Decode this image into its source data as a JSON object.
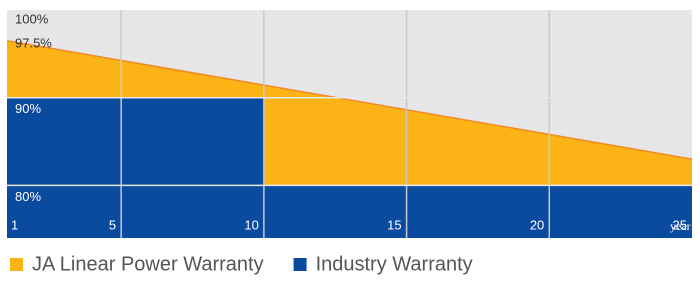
{
  "chart_data": {
    "type": "area",
    "series": [
      {
        "name": "JA Linear Power Warranty",
        "color": "#fbb316",
        "x": [
          1,
          25
        ],
        "values": [
          96.5,
          83
        ]
      },
      {
        "name": "Industry Warranty",
        "color": "#0a4a9f",
        "x": [
          1,
          10,
          10,
          25
        ],
        "values": [
          90,
          90,
          80,
          80
        ]
      }
    ],
    "xlim": [
      1,
      25
    ],
    "xticks": [
      1,
      5,
      10,
      15,
      20,
      25
    ],
    "xlabel": "year",
    "ylim": [
      74,
      100
    ],
    "yticks": [
      {
        "value": 100,
        "label": "100%"
      },
      {
        "value": 97.5,
        "label": "97.5%"
      },
      {
        "value": 90,
        "label": "90%"
      },
      {
        "value": 80,
        "label": "80%"
      }
    ],
    "grid": true
  }
}
